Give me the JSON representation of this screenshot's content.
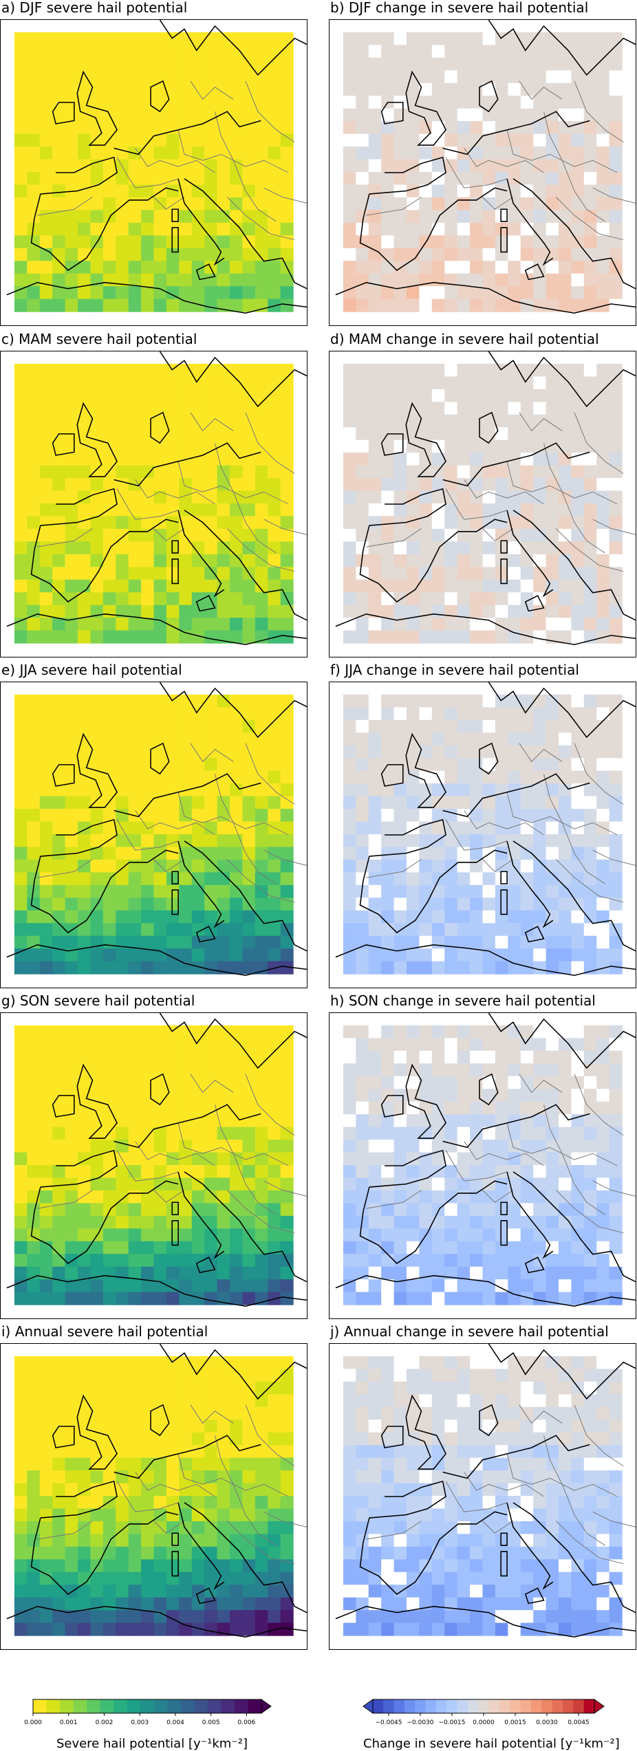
{
  "panels": [
    {
      "id": "a",
      "title": "a) DJF severe hail potential",
      "kind": "potential",
      "level": 0.1,
      "south_boost": 0.35
    },
    {
      "id": "b",
      "title": "b) DJF change in severe hail potential",
      "kind": "change",
      "level": 0.1,
      "tone": "mixed-red"
    },
    {
      "id": "c",
      "title": "c) MAM severe hail potential",
      "kind": "potential",
      "level": 0.2,
      "south_boost": 0.25
    },
    {
      "id": "d",
      "title": "d) MAM change in severe hail potential",
      "kind": "change",
      "level": 0.15,
      "tone": "mixed"
    },
    {
      "id": "e",
      "title": "e) JJA severe hail potential",
      "kind": "potential",
      "level": 0.45,
      "south_boost": 0.7
    },
    {
      "id": "f",
      "title": "f) JJA change in severe hail potential",
      "kind": "change",
      "level": 0.4,
      "tone": "blue"
    },
    {
      "id": "g",
      "title": "g) SON severe hail potential",
      "kind": "potential",
      "level": 0.35,
      "south_boost": 0.9
    },
    {
      "id": "h",
      "title": "h) SON change in severe hail potential",
      "kind": "change",
      "level": 0.5,
      "tone": "blue"
    },
    {
      "id": "i",
      "title": "i) Annual severe hail potential",
      "kind": "potential",
      "level": 0.6,
      "south_boost": 1.0
    },
    {
      "id": "j",
      "title": "j) Annual change in severe hail potential",
      "kind": "change",
      "level": 0.6,
      "tone": "blue"
    }
  ],
  "colorbar_potential": {
    "label": "Severe hail potential [y⁻¹km⁻²]",
    "ticks": [
      "0.000",
      "0.001",
      "0.002",
      "0.003",
      "0.004",
      "0.005",
      "0.006"
    ],
    "colors": [
      "#fde725",
      "#d8e219",
      "#addc30",
      "#84d44b",
      "#5ec962",
      "#3fbc73",
      "#28ae80",
      "#1fa088",
      "#21918c",
      "#26828e",
      "#2c728e",
      "#33638d",
      "#3b528b",
      "#424086",
      "#472d7b",
      "#48186a",
      "#440154"
    ],
    "extend": "max"
  },
  "colorbar_change": {
    "label": "Change in severe hail potential [y⁻¹km⁻²]",
    "ticks": [
      "−0.0045",
      "−0.0030",
      "−0.0015",
      "0.0000",
      "0.0015",
      "0.0030",
      "0.0045"
    ],
    "colors": [
      "#3b4cc0",
      "#4a63d3",
      "#5b7ae5",
      "#6c8ff1",
      "#7ea1f8",
      "#90b2fe",
      "#a2c1ff",
      "#b3cdfb",
      "#c4d5f3",
      "#d5dbe5",
      "#e2dad5",
      "#ecd3c5",
      "#f2c9b4",
      "#f5bca2",
      "#f6ac8f",
      "#f39a7b",
      "#ed8666",
      "#e57058",
      "#da5a49",
      "#cc403a",
      "#b40426"
    ],
    "extend": "both"
  }
}
